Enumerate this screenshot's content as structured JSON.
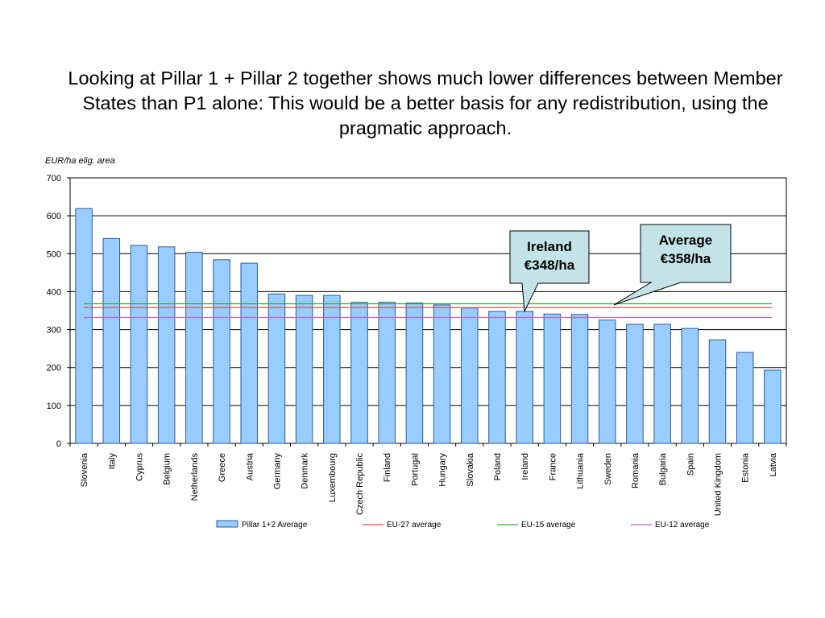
{
  "slide": {
    "title": "Looking at Pillar 1 + Pillar 2 together shows much lower differences between Member States than P1 alone: This would be a better basis for any redistribution, using the pragmatic approach."
  },
  "chart_data": {
    "type": "bar",
    "ylabel": "EUR/ha elig. area",
    "ylim": [
      0,
      700
    ],
    "yticks": [
      0,
      100,
      200,
      300,
      400,
      500,
      600,
      700
    ],
    "grid": true,
    "legend_position": "bottom",
    "categories": [
      "Slovenia",
      "Italy",
      "Cyprus",
      "Belgium",
      "Netherlands",
      "Greece",
      "Austria",
      "Germany",
      "Denmark",
      "Luxembourg",
      "Czech Republic",
      "Finland",
      "Portugal",
      "Hungary",
      "Slovakia",
      "Poland",
      "Ireland",
      "France",
      "Lithuania",
      "Sweden",
      "Romania",
      "Bulgaria",
      "Spain",
      "United Kingdom",
      "Estonia",
      "Latvia"
    ],
    "series": [
      {
        "name": "Pillar 1+2 Average",
        "values": [
          619,
          540,
          522,
          518,
          504,
          484,
          475,
          394,
          390,
          390,
          372,
          372,
          370,
          365,
          357,
          348,
          348,
          341,
          340,
          325,
          314,
          314,
          303,
          273,
          240,
          193
        ],
        "color": "#99ccff"
      }
    ],
    "reference_lines": [
      {
        "name": "EU-27 average",
        "value": 358,
        "color": "#e05050"
      },
      {
        "name": "EU-15 average",
        "value": 368,
        "color": "#33aa33"
      },
      {
        "name": "EU-12 average",
        "value": 332,
        "color": "#bb66bb"
      }
    ],
    "callouts": [
      {
        "line1": "Ireland",
        "line2": "€348/ha"
      },
      {
        "line1": "Average",
        "line2": "€358/ha"
      }
    ]
  }
}
